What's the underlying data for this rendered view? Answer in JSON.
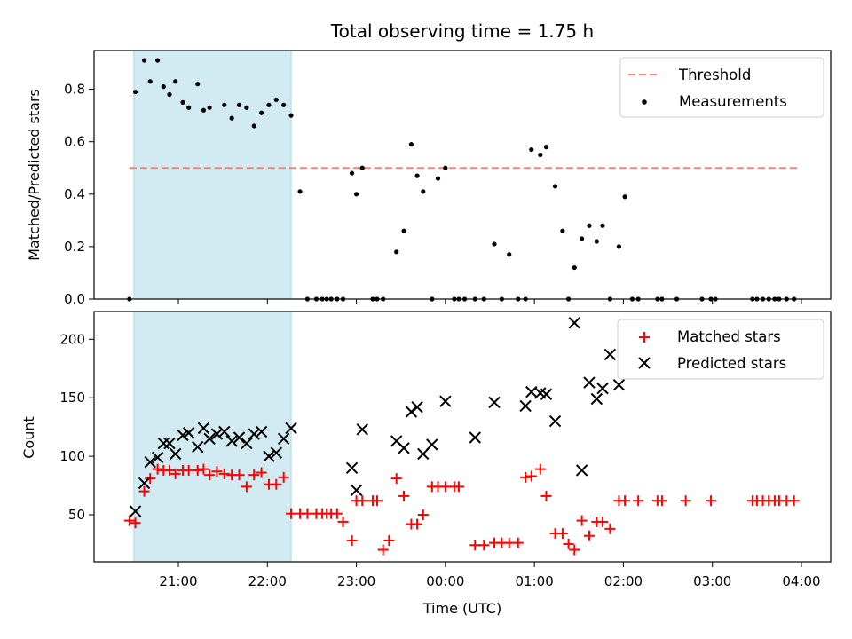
{
  "chart_data": [
    {
      "type": "scatter",
      "title": "Total observing time = 1.75 h",
      "ylabel": "Matched/Predicted stars",
      "xlabel": "",
      "xlim": [
        "20:30",
        "04:10"
      ],
      "ylim": [
        0,
        0.95
      ],
      "yticks": [
        "0.0",
        "0.2",
        "0.4",
        "0.6",
        "0.8"
      ],
      "shaded_interval": [
        "20:30",
        "22:16"
      ],
      "shade_color": "#add8e6",
      "legend_position": "upper right",
      "threshold": {
        "name": "Threshold",
        "y": 0.5,
        "x_start": "20:27",
        "x_end": "03:58",
        "color": "#ff7f7f",
        "style": "dashed"
      },
      "series": [
        {
          "name": "Measurements",
          "color": "#000000",
          "marker": "dot",
          "points": [
            [
              "20:27",
              0
            ],
            [
              "20:31",
              0.79
            ],
            [
              "20:37",
              0.91
            ],
            [
              "20:41",
              0.83
            ],
            [
              "20:46",
              0.91
            ],
            [
              "20:50",
              0.81
            ],
            [
              "20:54",
              0.78
            ],
            [
              "20:58",
              0.83
            ],
            [
              "21:03",
              0.75
            ],
            [
              "21:07",
              0.73
            ],
            [
              "21:13",
              0.82
            ],
            [
              "21:17",
              0.72
            ],
            [
              "21:21",
              0.73
            ],
            [
              "21:31",
              0.74
            ],
            [
              "21:36",
              0.69
            ],
            [
              "21:41",
              0.74
            ],
            [
              "21:46",
              0.73
            ],
            [
              "21:51",
              0.66
            ],
            [
              "21:56",
              0.71
            ],
            [
              "22:01",
              0.74
            ],
            [
              "22:06",
              0.76
            ],
            [
              "22:11",
              0.74
            ],
            [
              "22:16",
              0.7
            ],
            [
              "22:22",
              0.41
            ],
            [
              "22:27",
              0
            ],
            [
              "22:33",
              0
            ],
            [
              "22:37",
              0
            ],
            [
              "22:40",
              0
            ],
            [
              "22:43",
              0
            ],
            [
              "22:47",
              0
            ],
            [
              "22:51",
              0
            ],
            [
              "22:57",
              0.48
            ],
            [
              "23:00",
              0.4
            ],
            [
              "23:04",
              0.5
            ],
            [
              "23:11",
              0
            ],
            [
              "23:14",
              0
            ],
            [
              "23:18",
              0
            ],
            [
              "23:27",
              0.18
            ],
            [
              "23:32",
              0.26
            ],
            [
              "23:37",
              0.59
            ],
            [
              "23:41",
              0.47
            ],
            [
              "23:45",
              0.41
            ],
            [
              "23:51",
              0
            ],
            [
              "23:55",
              0.46
            ],
            [
              "00:00",
              0.5
            ],
            [
              "00:06",
              0
            ],
            [
              "00:09",
              0
            ],
            [
              "00:13",
              0
            ],
            [
              "00:20",
              0
            ],
            [
              "00:26",
              0
            ],
            [
              "00:33",
              0.21
            ],
            [
              "00:38",
              0
            ],
            [
              "00:43",
              0.17
            ],
            [
              "00:49",
              0
            ],
            [
              "00:54",
              0
            ],
            [
              "00:58",
              0.57
            ],
            [
              "01:04",
              0.55
            ],
            [
              "01:08",
              0.58
            ],
            [
              "01:14",
              0.43
            ],
            [
              "01:19",
              0.26
            ],
            [
              "01:23",
              0
            ],
            [
              "01:27",
              0.12
            ],
            [
              "01:32",
              0.23
            ],
            [
              "01:37",
              0.28
            ],
            [
              "01:42",
              0.22
            ],
            [
              "01:46",
              0.28
            ],
            [
              "01:51",
              0
            ],
            [
              "01:57",
              0.2
            ],
            [
              "02:01",
              0.39
            ],
            [
              "02:06",
              0
            ],
            [
              "02:10",
              0
            ],
            [
              "02:23",
              0
            ],
            [
              "02:26",
              0
            ],
            [
              "02:36",
              0
            ],
            [
              "02:53",
              0
            ],
            [
              "02:59",
              0
            ],
            [
              "03:02",
              0
            ],
            [
              "03:27",
              0
            ],
            [
              "03:30",
              0
            ],
            [
              "03:34",
              0
            ],
            [
              "03:38",
              0
            ],
            [
              "03:42",
              0
            ],
            [
              "03:45",
              0
            ],
            [
              "03:50",
              0
            ],
            [
              "03:55",
              0
            ]
          ]
        }
      ]
    },
    {
      "type": "scatter",
      "title": "",
      "ylabel": "Count",
      "xlabel": "Time (UTC)",
      "xlim": [
        "20:30",
        "04:10"
      ],
      "ylim": [
        10,
        222
      ],
      "yticks": [
        "50",
        "100",
        "150",
        "200"
      ],
      "xticks": [
        "21:00",
        "22:00",
        "23:00",
        "00:00",
        "01:00",
        "02:00",
        "03:00",
        "04:00"
      ],
      "shaded_interval": [
        "20:30",
        "22:16"
      ],
      "shade_color": "#add8e6",
      "legend_position": "upper right",
      "series": [
        {
          "name": "Matched stars",
          "color": "#ff0000",
          "marker": "plus",
          "points": [
            [
              "20:27",
              45
            ],
            [
              "20:31",
              43
            ],
            [
              "20:37",
              70
            ],
            [
              "20:41",
              81
            ],
            [
              "20:46",
              89
            ],
            [
              "20:50",
              88
            ],
            [
              "20:54",
              88
            ],
            [
              "20:58",
              85
            ],
            [
              "21:03",
              88
            ],
            [
              "21:07",
              88
            ],
            [
              "21:13",
              88
            ],
            [
              "21:17",
              89
            ],
            [
              "21:21",
              84
            ],
            [
              "21:26",
              87
            ],
            [
              "21:31",
              85
            ],
            [
              "21:36",
              84
            ],
            [
              "21:41",
              84
            ],
            [
              "21:46",
              74
            ],
            [
              "21:51",
              84
            ],
            [
              "21:56",
              86
            ],
            [
              "22:01",
              76
            ],
            [
              "22:06",
              76
            ],
            [
              "22:11",
              82
            ],
            [
              "22:16",
              51
            ],
            [
              "22:22",
              51
            ],
            [
              "22:27",
              51
            ],
            [
              "22:33",
              51
            ],
            [
              "22:37",
              51
            ],
            [
              "22:40",
              51
            ],
            [
              "22:43",
              51
            ],
            [
              "22:47",
              51
            ],
            [
              "22:51",
              44
            ],
            [
              "22:57",
              28
            ],
            [
              "23:00",
              62
            ],
            [
              "23:04",
              62
            ],
            [
              "23:11",
              62
            ],
            [
              "23:14",
              62
            ],
            [
              "23:18",
              20
            ],
            [
              "23:22",
              28
            ],
            [
              "23:27",
              81
            ],
            [
              "23:32",
              66
            ],
            [
              "23:37",
              42
            ],
            [
              "23:41",
              42
            ],
            [
              "23:45",
              50
            ],
            [
              "23:51",
              74
            ],
            [
              "23:55",
              74
            ],
            [
              "00:00",
              74
            ],
            [
              "00:06",
              74
            ],
            [
              "00:09",
              74
            ],
            [
              "00:20",
              24
            ],
            [
              "00:26",
              24
            ],
            [
              "00:33",
              26
            ],
            [
              "00:38",
              26
            ],
            [
              "00:43",
              26
            ],
            [
              "00:49",
              26
            ],
            [
              "00:54",
              82
            ],
            [
              "00:58",
              83
            ],
            [
              "01:04",
              89
            ],
            [
              "01:08",
              66
            ],
            [
              "01:14",
              34
            ],
            [
              "01:19",
              34
            ],
            [
              "01:23",
              25
            ],
            [
              "01:27",
              20
            ],
            [
              "01:32",
              45
            ],
            [
              "01:37",
              32
            ],
            [
              "01:42",
              44
            ],
            [
              "01:46",
              44
            ],
            [
              "01:51",
              38
            ],
            [
              "01:57",
              62
            ],
            [
              "02:01",
              62
            ],
            [
              "02:10",
              62
            ],
            [
              "02:23",
              62
            ],
            [
              "02:26",
              62
            ],
            [
              "02:42",
              62
            ],
            [
              "02:59",
              62
            ],
            [
              "03:27",
              62
            ],
            [
              "03:30",
              62
            ],
            [
              "03:34",
              62
            ],
            [
              "03:38",
              62
            ],
            [
              "03:42",
              62
            ],
            [
              "03:45",
              62
            ],
            [
              "03:50",
              62
            ],
            [
              "03:55",
              62
            ]
          ]
        },
        {
          "name": "Predicted stars",
          "color": "#000000",
          "marker": "x",
          "points": [
            [
              "20:31",
              53
            ],
            [
              "20:37",
              77
            ],
            [
              "20:41",
              95
            ],
            [
              "20:46",
              99
            ],
            [
              "20:50",
              111
            ],
            [
              "20:54",
              111
            ],
            [
              "20:58",
              102
            ],
            [
              "21:03",
              118
            ],
            [
              "21:07",
              120
            ],
            [
              "21:13",
              108
            ],
            [
              "21:17",
              124
            ],
            [
              "21:21",
              115
            ],
            [
              "21:26",
              119
            ],
            [
              "21:31",
              121
            ],
            [
              "21:36",
              113
            ],
            [
              "21:41",
              116
            ],
            [
              "21:46",
              111
            ],
            [
              "21:51",
              119
            ],
            [
              "21:56",
              121
            ],
            [
              "22:01",
              100
            ],
            [
              "22:06",
              103
            ],
            [
              "22:11",
              115
            ],
            [
              "22:16",
              124
            ],
            [
              "22:57",
              90
            ],
            [
              "23:00",
              71
            ],
            [
              "23:04",
              123
            ],
            [
              "23:27",
              113
            ],
            [
              "23:32",
              107
            ],
            [
              "23:37",
              138
            ],
            [
              "23:41",
              142
            ],
            [
              "23:45",
              102
            ],
            [
              "23:51",
              110
            ],
            [
              "00:00",
              147
            ],
            [
              "00:20",
              116
            ],
            [
              "00:33",
              146
            ],
            [
              "00:54",
              143
            ],
            [
              "00:58",
              155
            ],
            [
              "01:04",
              154
            ],
            [
              "01:08",
              153
            ],
            [
              "01:14",
              130
            ],
            [
              "01:27",
              214
            ],
            [
              "01:32",
              88
            ],
            [
              "01:37",
              163
            ],
            [
              "01:42",
              149
            ],
            [
              "01:46",
              158
            ],
            [
              "01:51",
              187
            ],
            [
              "01:57",
              161
            ]
          ]
        }
      ]
    }
  ]
}
